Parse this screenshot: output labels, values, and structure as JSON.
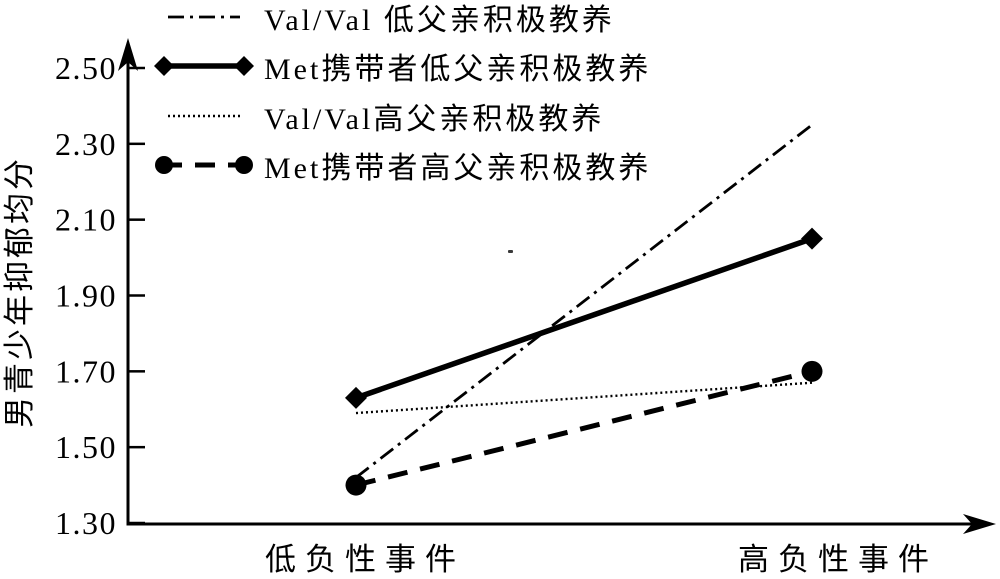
{
  "figure": {
    "background": "#ffffff",
    "ink_color": "#000000"
  },
  "chart_data": {
    "type": "line",
    "title": "",
    "xlabel": "",
    "ylabel": "男青少年抑郁均分",
    "categories": [
      "低负性事件",
      "高负性事件"
    ],
    "ytick_labels": [
      "1.30",
      "1.50",
      "1.70",
      "1.90",
      "2.10",
      "2.30",
      "2.50"
    ],
    "ylim": [
      1.3,
      2.5
    ],
    "grid": false,
    "legend_position": "top-left",
    "series": [
      {
        "name": "Val/Val 低父亲积极教养",
        "line_style": "dashdot",
        "marker": "none",
        "values": [
          1.42,
          2.35
        ]
      },
      {
        "name": "Met携带者低父亲积极教养",
        "line_style": "solid",
        "marker": "diamond",
        "values": [
          1.63,
          2.05
        ]
      },
      {
        "name": "Val/Val高父亲积极教养",
        "line_style": "dotted",
        "marker": "none",
        "values": [
          1.59,
          1.67
        ]
      },
      {
        "name": "Met携带者高父亲积极教养",
        "line_style": "dashed",
        "marker": "circle",
        "values": [
          1.4,
          1.7
        ]
      }
    ]
  }
}
